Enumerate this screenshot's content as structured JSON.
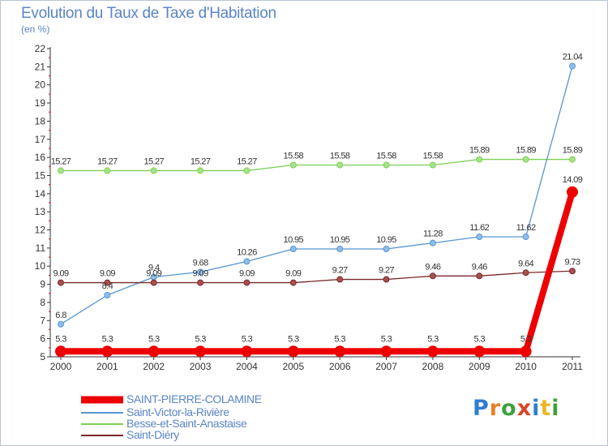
{
  "header": {
    "title": "Evolution du Taux de Taxe d'Habitation",
    "unit": "(en %)"
  },
  "logo": {
    "letters": [
      "P",
      "r",
      "o",
      "x",
      "i",
      "t",
      "i"
    ],
    "colors": [
      "#2f7fd0",
      "#e8802a",
      "#3f9f3f",
      "#d9442a",
      "#2f7fd0",
      "#e8b82a",
      "#3f9f3f"
    ]
  },
  "chart_data": {
    "type": "line",
    "title": "Evolution du Taux de Taxe d'Habitation",
    "ylabel": "(en %)",
    "xlabel": "",
    "ylim": [
      5,
      22
    ],
    "yticks": [
      "5",
      "6",
      "7",
      "8",
      "9",
      "10",
      "11",
      "12",
      "13",
      "14",
      "15",
      "16",
      "17",
      "18",
      "19",
      "20",
      "21",
      "22"
    ],
    "categories": [
      "2000",
      "2001",
      "2002",
      "2003",
      "2004",
      "2005",
      "2006",
      "2007",
      "2008",
      "2009",
      "2010",
      "2011"
    ],
    "grid": false,
    "legend": "bottom-left",
    "series": [
      {
        "name": "SAINT-PIERRE-COLAMINE",
        "color": "#ee0000",
        "values": [
          5.3,
          5.3,
          5.3,
          5.3,
          5.3,
          5.3,
          5.3,
          5.3,
          5.3,
          5.3,
          5.3,
          14.09
        ],
        "labels": [
          "5.3",
          "5.3",
          "5.3",
          "5.3",
          "5.3",
          "5.3",
          "5.3",
          "5.3",
          "5.3",
          "5.3",
          "5.3",
          "14.09"
        ]
      },
      {
        "name": "Saint-Victor-la-Rivière",
        "color": "#5896d2",
        "values": [
          6.8,
          8.4,
          9.4,
          9.68,
          10.26,
          10.95,
          10.95,
          10.95,
          11.28,
          11.62,
          11.62,
          21.04
        ],
        "labels": [
          "6.8",
          "8.4",
          "9.4",
          "9.68",
          "10.26",
          "10.95",
          "10.95",
          "10.95",
          "11.28",
          "11.62",
          "11.62",
          "21.04"
        ]
      },
      {
        "name": "Besse-et-Saint-Anastaise",
        "color": "#7ed155",
        "values": [
          15.27,
          15.27,
          15.27,
          15.27,
          15.27,
          15.58,
          15.58,
          15.58,
          15.58,
          15.89,
          15.89,
          15.89
        ],
        "labels": [
          "15.27",
          "15.27",
          "15.27",
          "15.27",
          "15.27",
          "15.58",
          "15.58",
          "15.58",
          "15.58",
          "15.89",
          "15.89",
          "15.89"
        ]
      },
      {
        "name": "Saint-Diéry",
        "color": "#7a2a2a",
        "values": [
          9.09,
          9.09,
          9.09,
          9.09,
          9.09,
          9.09,
          9.27,
          9.27,
          9.46,
          9.46,
          9.64,
          9.73
        ],
        "labels": [
          "9.09",
          "9.09",
          "9.09",
          "9.09",
          "9.09",
          "9.09",
          "9.27",
          "9.27",
          "9.46",
          "9.46",
          "9.64",
          "9.73"
        ]
      }
    ]
  }
}
